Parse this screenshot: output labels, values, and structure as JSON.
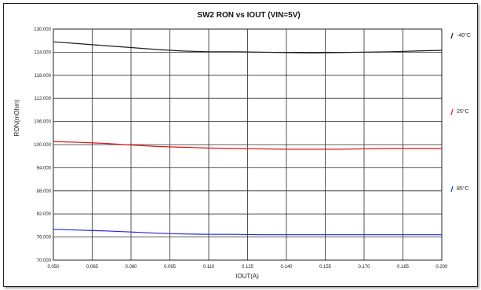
{
  "chart_data": {
    "type": "line",
    "title": "SW2 RON vs IOUT (VIN=5V)",
    "xlabel": "IOUT(A)",
    "ylabel": "RON(mOhm)",
    "xlim": [
      0.05,
      0.2
    ],
    "ylim": [
      70.0,
      130.0
    ],
    "x_ticks": [
      "0.050",
      "0.065",
      "0.080",
      "0.095",
      "0.110",
      "0.125",
      "0.140",
      "0.155",
      "0.170",
      "0.185",
      "0.200"
    ],
    "y_ticks": [
      "130.000",
      "124.000",
      "118.000",
      "112.000",
      "106.000",
      "100.000",
      "94.000",
      "88.000",
      "82.000",
      "76.000",
      "70.000"
    ],
    "grid": true,
    "legend_position": "right",
    "series": [
      {
        "name": "-40°C",
        "color": "#1c1c1c",
        "x": [
          0.05,
          0.06,
          0.07,
          0.08,
          0.09,
          0.1,
          0.11,
          0.12,
          0.13,
          0.14,
          0.15,
          0.16,
          0.17,
          0.18,
          0.19,
          0.2
        ],
        "values": [
          126.7,
          126.2,
          125.7,
          125.2,
          124.7,
          124.3,
          124.1,
          124.1,
          124.0,
          123.9,
          123.8,
          123.9,
          124.0,
          124.1,
          124.3,
          124.5
        ]
      },
      {
        "name": "25°C",
        "color": "#e11414",
        "x": [
          0.05,
          0.06,
          0.07,
          0.08,
          0.09,
          0.1,
          0.11,
          0.12,
          0.13,
          0.14,
          0.15,
          0.16,
          0.17,
          0.18,
          0.19,
          0.2
        ],
        "values": [
          100.8,
          100.6,
          100.3,
          99.9,
          99.5,
          99.3,
          99.1,
          99.0,
          98.9,
          98.8,
          98.8,
          98.8,
          98.9,
          99.0,
          99.0,
          99.0
        ]
      },
      {
        "name": "85°C",
        "color": "#1e2ad6",
        "x": [
          0.05,
          0.06,
          0.07,
          0.08,
          0.09,
          0.1,
          0.11,
          0.12,
          0.13,
          0.14,
          0.15,
          0.16,
          0.17,
          0.18,
          0.19,
          0.2
        ],
        "values": [
          78.0,
          77.8,
          77.6,
          77.3,
          77.0,
          76.8,
          76.7,
          76.7,
          76.6,
          76.6,
          76.6,
          76.6,
          76.6,
          76.6,
          76.6,
          76.6
        ]
      }
    ]
  }
}
